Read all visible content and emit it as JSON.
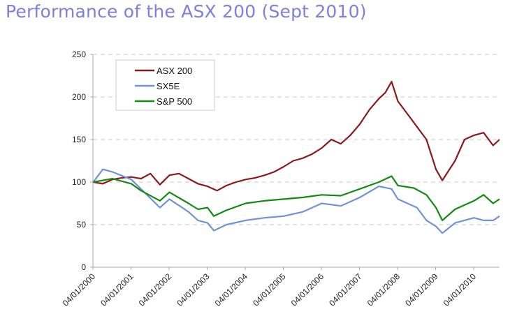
{
  "chart_data": {
    "type": "line",
    "title": "Performance of the ASX 200 (Sept 2010)",
    "xlabel": "",
    "ylabel": "",
    "ylim": [
      0,
      250
    ],
    "yticks": [
      0,
      50,
      100,
      150,
      200,
      250
    ],
    "xlim": [
      "2000-01",
      "2010-09"
    ],
    "xtick_labels": [
      "04/01/2000",
      "04/01/2001",
      "04/01/2002",
      "04/01/2003",
      "04/01/2004",
      "04/01/2005",
      "04/01/2006",
      "04/01/2007",
      "04/01/2008",
      "04/01/2009",
      "04/01/2010"
    ],
    "grid": "horizontal dashed",
    "legend_position": "top-left",
    "series": [
      {
        "name": "ASX 200",
        "color": "#8b1a1a",
        "points": [
          [
            "2000-01",
            100
          ],
          [
            "2000-04",
            98
          ],
          [
            "2000-07",
            103
          ],
          [
            "2000-10",
            105
          ],
          [
            "2001-01",
            106
          ],
          [
            "2001-04",
            104
          ],
          [
            "2001-07",
            110
          ],
          [
            "2001-10",
            97
          ],
          [
            "2002-01",
            108
          ],
          [
            "2002-04",
            110
          ],
          [
            "2002-07",
            104
          ],
          [
            "2002-10",
            98
          ],
          [
            "2003-01",
            95
          ],
          [
            "2003-04",
            90
          ],
          [
            "2003-07",
            96
          ],
          [
            "2003-10",
            100
          ],
          [
            "2004-01",
            103
          ],
          [
            "2004-04",
            105
          ],
          [
            "2004-07",
            108
          ],
          [
            "2004-10",
            112
          ],
          [
            "2005-01",
            118
          ],
          [
            "2005-04",
            125
          ],
          [
            "2005-07",
            128
          ],
          [
            "2005-10",
            133
          ],
          [
            "2006-01",
            140
          ],
          [
            "2006-04",
            150
          ],
          [
            "2006-07",
            145
          ],
          [
            "2006-10",
            155
          ],
          [
            "2007-01",
            168
          ],
          [
            "2007-04",
            185
          ],
          [
            "2007-07",
            198
          ],
          [
            "2007-09",
            205
          ],
          [
            "2007-11",
            218
          ],
          [
            "2008-01",
            195
          ],
          [
            "2008-04",
            180
          ],
          [
            "2008-07",
            165
          ],
          [
            "2008-10",
            150
          ],
          [
            "2009-01",
            115
          ],
          [
            "2009-03",
            102
          ],
          [
            "2009-07",
            125
          ],
          [
            "2009-10",
            150
          ],
          [
            "2010-01",
            155
          ],
          [
            "2010-04",
            158
          ],
          [
            "2010-07",
            143
          ],
          [
            "2010-09",
            150
          ]
        ]
      },
      {
        "name": "SX5E",
        "color": "#6f93d8",
        "points": [
          [
            "2000-01",
            100
          ],
          [
            "2000-04",
            115
          ],
          [
            "2000-07",
            112
          ],
          [
            "2001-01",
            103
          ],
          [
            "2001-10",
            70
          ],
          [
            "2002-01",
            80
          ],
          [
            "2002-07",
            65
          ],
          [
            "2002-10",
            55
          ],
          [
            "2003-01",
            52
          ],
          [
            "2003-03",
            43
          ],
          [
            "2003-07",
            50
          ],
          [
            "2004-01",
            55
          ],
          [
            "2004-07",
            58
          ],
          [
            "2005-01",
            60
          ],
          [
            "2005-07",
            65
          ],
          [
            "2006-01",
            75
          ],
          [
            "2006-07",
            72
          ],
          [
            "2007-01",
            82
          ],
          [
            "2007-07",
            95
          ],
          [
            "2007-11",
            92
          ],
          [
            "2008-01",
            80
          ],
          [
            "2008-07",
            70
          ],
          [
            "2008-10",
            55
          ],
          [
            "2009-01",
            48
          ],
          [
            "2009-03",
            40
          ],
          [
            "2009-07",
            52
          ],
          [
            "2010-01",
            58
          ],
          [
            "2010-04",
            55
          ],
          [
            "2010-07",
            55
          ],
          [
            "2010-09",
            60
          ]
        ]
      },
      {
        "name": "S&P 500",
        "color": "#138a13",
        "points": [
          [
            "2000-01",
            100
          ],
          [
            "2000-07",
            104
          ],
          [
            "2001-01",
            98
          ],
          [
            "2001-04",
            90
          ],
          [
            "2001-10",
            78
          ],
          [
            "2002-01",
            88
          ],
          [
            "2002-07",
            75
          ],
          [
            "2002-10",
            68
          ],
          [
            "2003-01",
            70
          ],
          [
            "2003-03",
            60
          ],
          [
            "2003-07",
            67
          ],
          [
            "2004-01",
            75
          ],
          [
            "2004-07",
            78
          ],
          [
            "2005-01",
            80
          ],
          [
            "2005-07",
            82
          ],
          [
            "2006-01",
            85
          ],
          [
            "2006-07",
            84
          ],
          [
            "2007-01",
            92
          ],
          [
            "2007-07",
            100
          ],
          [
            "2007-11",
            107
          ],
          [
            "2008-01",
            96
          ],
          [
            "2008-06",
            93
          ],
          [
            "2008-10",
            85
          ],
          [
            "2009-01",
            70
          ],
          [
            "2009-03",
            55
          ],
          [
            "2009-07",
            68
          ],
          [
            "2010-01",
            78
          ],
          [
            "2010-04",
            85
          ],
          [
            "2010-07",
            75
          ],
          [
            "2010-09",
            80
          ]
        ]
      }
    ]
  }
}
